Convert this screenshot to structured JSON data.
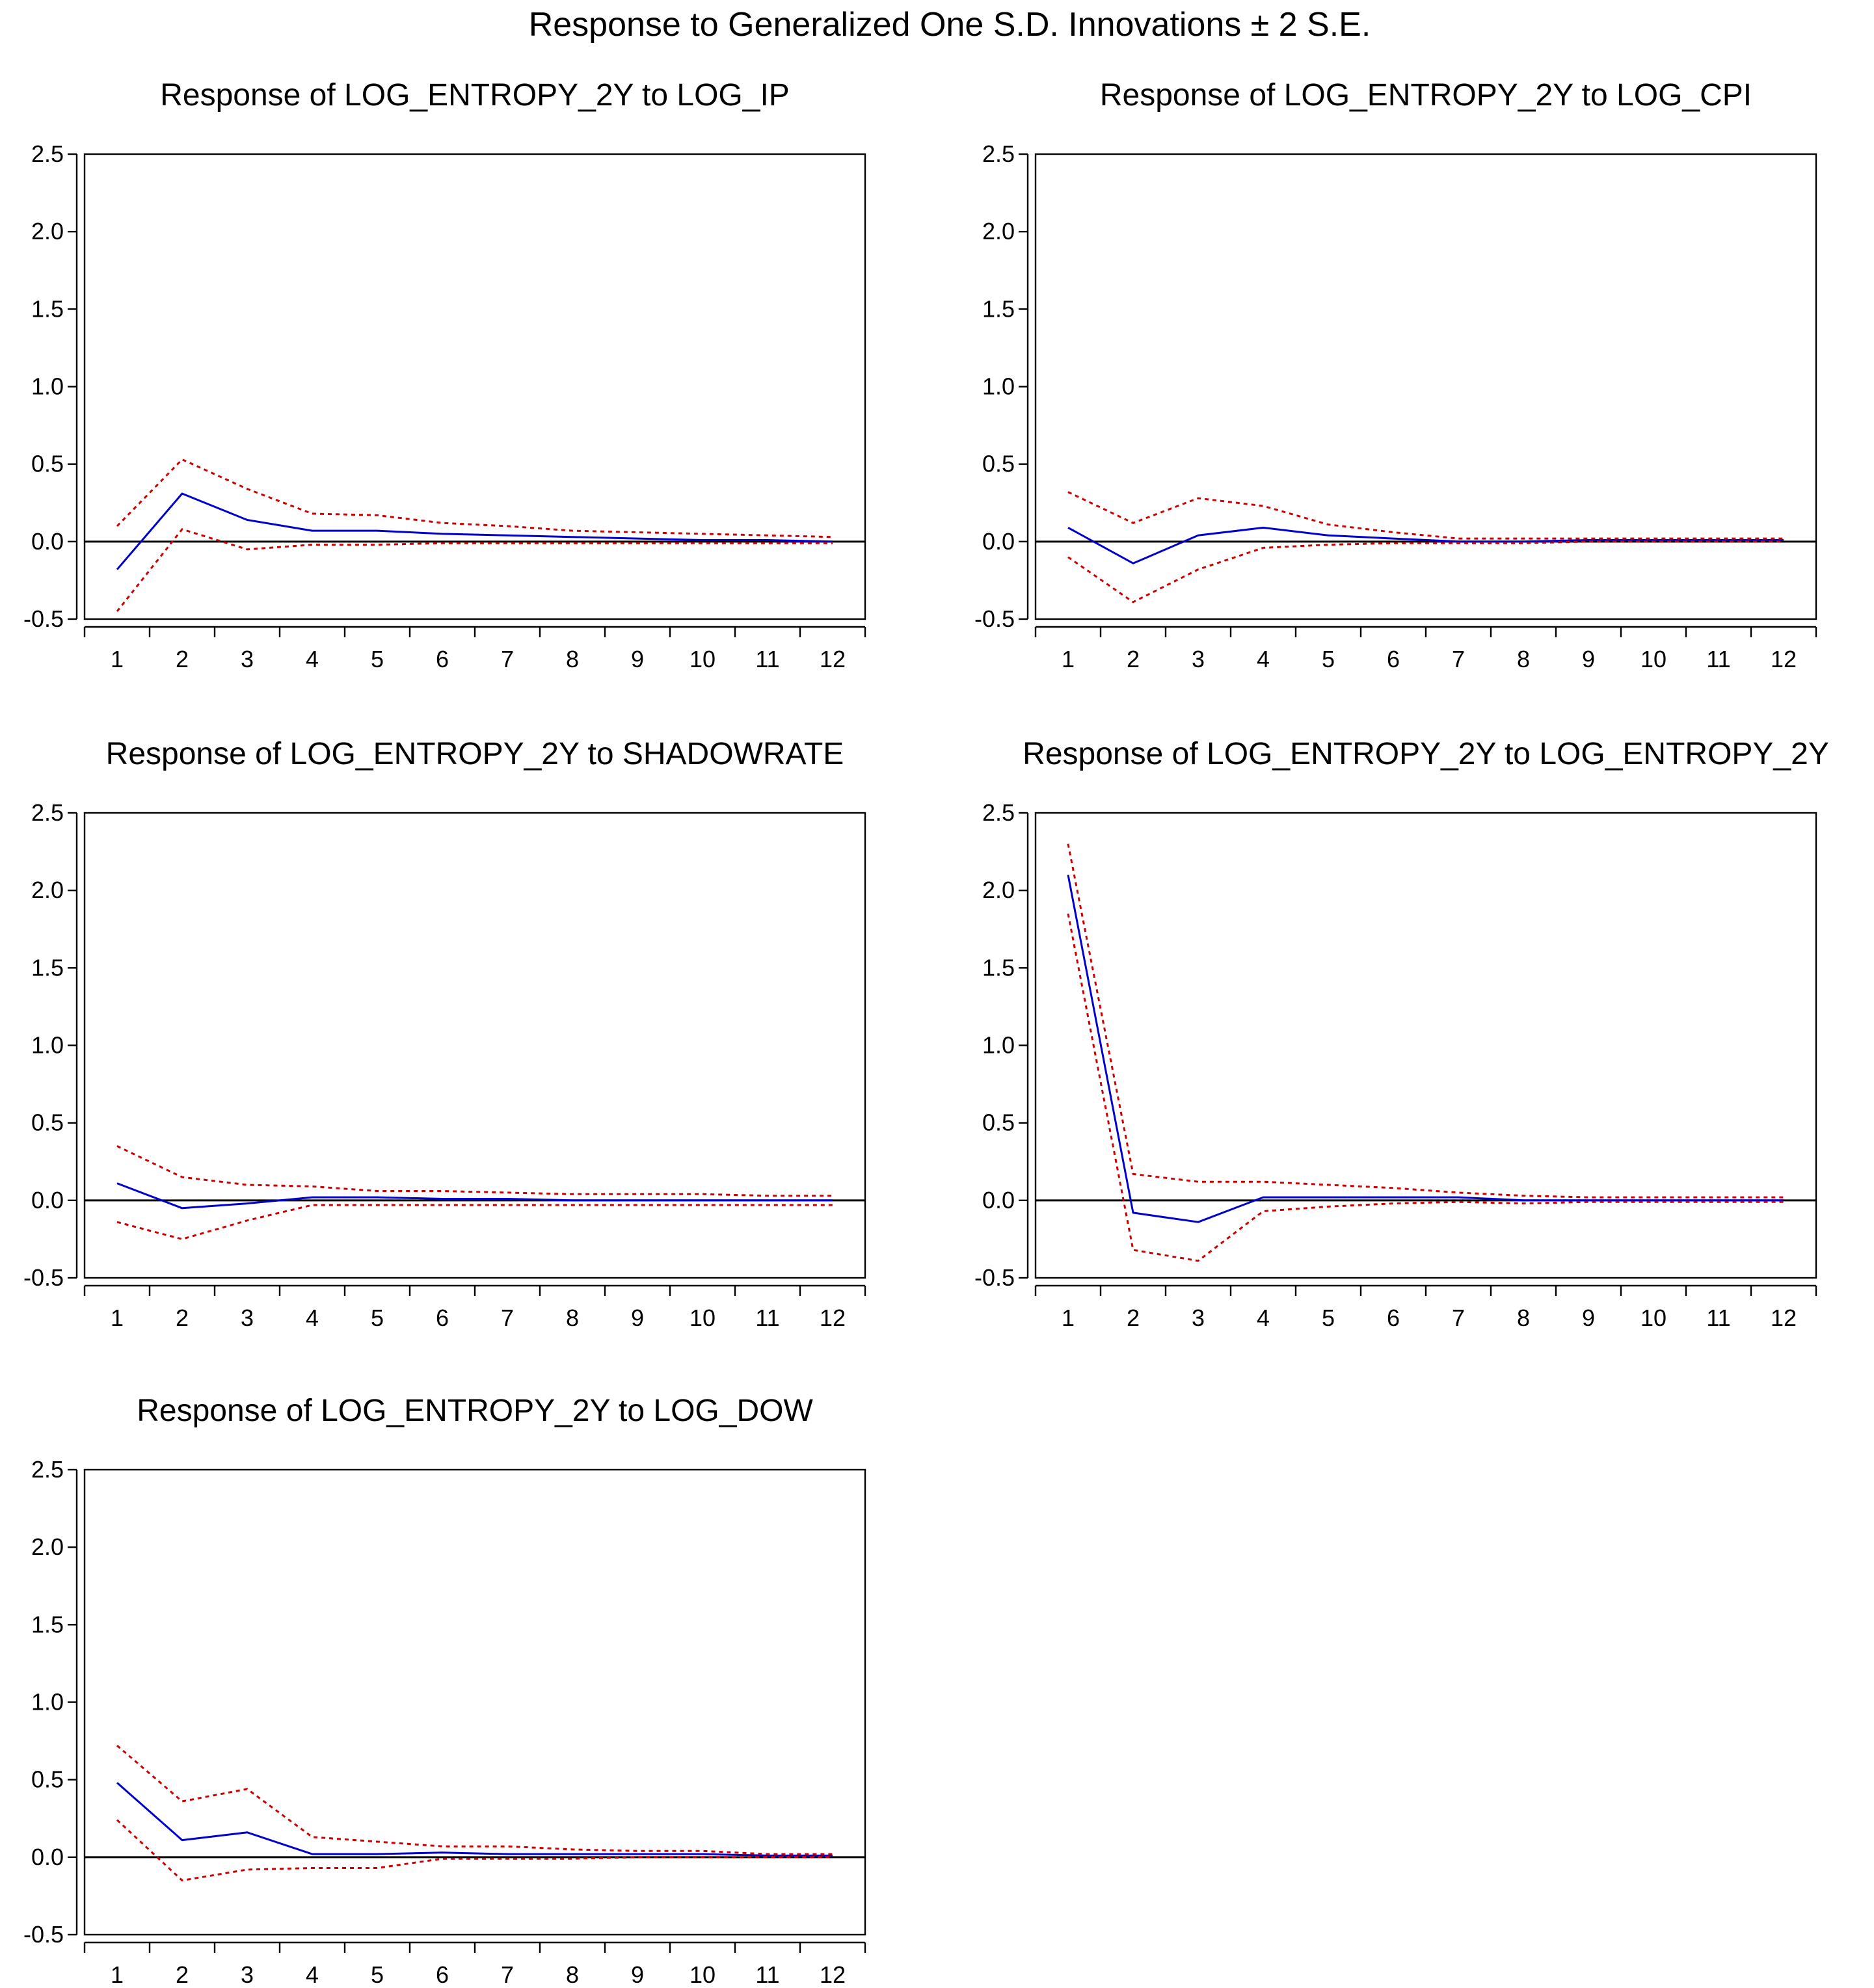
{
  "chart_data": {
    "title": "Response to Generalized One S.D. Innovations ± 2 S.E.",
    "colors": {
      "response": "#0000cc",
      "band": "#cc0000",
      "axis": "#000000"
    },
    "panels": [
      {
        "type": "line",
        "title": "Response of LOG_ENTROPY_2Y to LOG_IP",
        "x": [
          1,
          2,
          3,
          4,
          5,
          6,
          7,
          8,
          9,
          10,
          11,
          12
        ],
        "ylim": [
          -0.5,
          2.5
        ],
        "yticks": [
          "-0.5",
          "0.0",
          "0.5",
          "1.0",
          "1.5",
          "2.0",
          "2.5"
        ],
        "xticks": [
          "1",
          "2",
          "3",
          "4",
          "5",
          "6",
          "7",
          "8",
          "9",
          "10",
          "11",
          "12"
        ],
        "series": [
          {
            "name": "response",
            "values": [
              -0.18,
              0.31,
              0.14,
              0.07,
              0.07,
              0.05,
              0.04,
              0.03,
              0.02,
              0.01,
              0.01,
              0.0
            ]
          },
          {
            "name": "upper",
            "values": [
              0.1,
              0.53,
              0.34,
              0.18,
              0.17,
              0.12,
              0.1,
              0.07,
              0.06,
              0.05,
              0.04,
              0.03
            ]
          },
          {
            "name": "lower",
            "values": [
              -0.45,
              0.08,
              -0.05,
              -0.02,
              -0.02,
              -0.01,
              -0.01,
              -0.01,
              -0.01,
              -0.01,
              -0.01,
              -0.01
            ]
          }
        ]
      },
      {
        "type": "line",
        "title": "Response of LOG_ENTROPY_2Y to LOG_CPI",
        "x": [
          1,
          2,
          3,
          4,
          5,
          6,
          7,
          8,
          9,
          10,
          11,
          12
        ],
        "ylim": [
          -0.5,
          2.5
        ],
        "yticks": [
          "-0.5",
          "0.0",
          "0.5",
          "1.0",
          "1.5",
          "2.0",
          "2.5"
        ],
        "xticks": [
          "1",
          "2",
          "3",
          "4",
          "5",
          "6",
          "7",
          "8",
          "9",
          "10",
          "11",
          "12"
        ],
        "series": [
          {
            "name": "response",
            "values": [
              0.09,
              -0.14,
              0.04,
              0.09,
              0.04,
              0.02,
              0.0,
              0.0,
              0.01,
              0.01,
              0.01,
              0.01
            ]
          },
          {
            "name": "upper",
            "values": [
              0.32,
              0.12,
              0.28,
              0.23,
              0.11,
              0.06,
              0.02,
              0.02,
              0.02,
              0.02,
              0.02,
              0.02
            ]
          },
          {
            "name": "lower",
            "values": [
              -0.1,
              -0.39,
              -0.18,
              -0.04,
              -0.02,
              -0.01,
              -0.01,
              -0.01,
              0.0,
              0.0,
              0.0,
              0.0
            ]
          }
        ]
      },
      {
        "type": "line",
        "title": "Response of LOG_ENTROPY_2Y to SHADOWRATE",
        "x": [
          1,
          2,
          3,
          4,
          5,
          6,
          7,
          8,
          9,
          10,
          11,
          12
        ],
        "ylim": [
          -0.5,
          2.5
        ],
        "yticks": [
          "-0.5",
          "0.0",
          "0.5",
          "1.0",
          "1.5",
          "2.0",
          "2.5"
        ],
        "xticks": [
          "1",
          "2",
          "3",
          "4",
          "5",
          "6",
          "7",
          "8",
          "9",
          "10",
          "11",
          "12"
        ],
        "series": [
          {
            "name": "response",
            "values": [
              0.11,
              -0.05,
              -0.02,
              0.02,
              0.02,
              0.01,
              0.01,
              0.0,
              0.0,
              0.0,
              0.0,
              0.0
            ]
          },
          {
            "name": "upper",
            "values": [
              0.35,
              0.15,
              0.1,
              0.09,
              0.06,
              0.06,
              0.05,
              0.04,
              0.04,
              0.04,
              0.03,
              0.03
            ]
          },
          {
            "name": "lower",
            "values": [
              -0.14,
              -0.25,
              -0.13,
              -0.03,
              -0.03,
              -0.03,
              -0.03,
              -0.03,
              -0.03,
              -0.03,
              -0.03,
              -0.03
            ]
          }
        ]
      },
      {
        "type": "line",
        "title": "Response of LOG_ENTROPY_2Y to LOG_ENTROPY_2Y",
        "x": [
          1,
          2,
          3,
          4,
          5,
          6,
          7,
          8,
          9,
          10,
          11,
          12
        ],
        "ylim": [
          -0.5,
          2.5
        ],
        "yticks": [
          "-0.5",
          "0.0",
          "0.5",
          "1.0",
          "1.5",
          "2.0",
          "2.5"
        ],
        "xticks": [
          "1",
          "2",
          "3",
          "4",
          "5",
          "6",
          "7",
          "8",
          "9",
          "10",
          "11",
          "12"
        ],
        "series": [
          {
            "name": "response",
            "values": [
              2.1,
              -0.08,
              -0.14,
              0.02,
              0.02,
              0.02,
              0.02,
              0.0,
              0.0,
              0.0,
              0.0,
              0.0
            ]
          },
          {
            "name": "upper",
            "values": [
              2.3,
              0.17,
              0.12,
              0.12,
              0.1,
              0.08,
              0.05,
              0.03,
              0.02,
              0.02,
              0.02,
              0.02
            ]
          },
          {
            "name": "lower",
            "values": [
              1.85,
              -0.32,
              -0.39,
              -0.07,
              -0.04,
              -0.02,
              -0.01,
              -0.02,
              -0.01,
              -0.01,
              -0.01,
              -0.01
            ]
          }
        ]
      },
      {
        "type": "line",
        "title": "Response of LOG_ENTROPY_2Y to LOG_DOW",
        "x": [
          1,
          2,
          3,
          4,
          5,
          6,
          7,
          8,
          9,
          10,
          11,
          12
        ],
        "ylim": [
          -0.5,
          2.5
        ],
        "yticks": [
          "-0.5",
          "0.0",
          "0.5",
          "1.0",
          "1.5",
          "2.0",
          "2.5"
        ],
        "xticks": [
          "1",
          "2",
          "3",
          "4",
          "5",
          "6",
          "7",
          "8",
          "9",
          "10",
          "11",
          "12"
        ],
        "series": [
          {
            "name": "response",
            "values": [
              0.48,
              0.11,
              0.16,
              0.02,
              0.02,
              0.03,
              0.02,
              0.02,
              0.02,
              0.02,
              0.01,
              0.01
            ]
          },
          {
            "name": "upper",
            "values": [
              0.72,
              0.36,
              0.44,
              0.13,
              0.1,
              0.07,
              0.07,
              0.05,
              0.04,
              0.04,
              0.02,
              0.02
            ]
          },
          {
            "name": "lower",
            "values": [
              0.24,
              -0.15,
              -0.08,
              -0.07,
              -0.07,
              -0.01,
              -0.01,
              -0.01,
              0.0,
              0.0,
              0.0,
              0.0
            ]
          }
        ]
      }
    ]
  }
}
